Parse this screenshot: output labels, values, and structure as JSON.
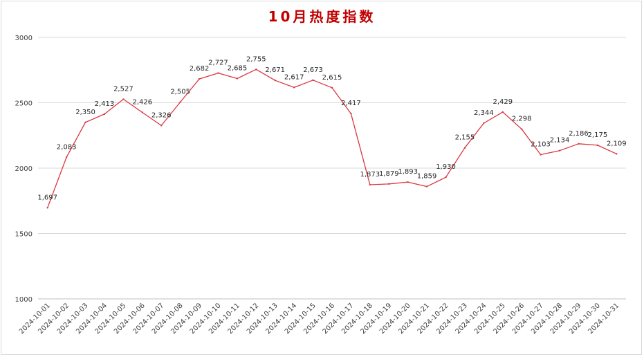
{
  "chart_data": {
    "type": "line",
    "title": "10月热度指数",
    "xlabel": "",
    "ylabel": "",
    "ylim": [
      1000,
      3000
    ],
    "yticks": [
      1000,
      1500,
      2000,
      2500,
      3000
    ],
    "grid": "horizontal",
    "legend": "none",
    "line_color": "#d9363e",
    "title_color": "#c00000",
    "categories": [
      "2024-10-01",
      "2024-10-02",
      "2024-10-03",
      "2024-10-04",
      "2024-10-05",
      "2024-10-06",
      "2024-10-07",
      "2024-10-08",
      "2024-10-09",
      "2024-10-10",
      "2024-10-11",
      "2024-10-12",
      "2024-10-13",
      "2024-10-14",
      "2024-10-15",
      "2024-10-16",
      "2024-10-17",
      "2024-10-18",
      "2024-10-19",
      "2024-10-20",
      "2024-10-21",
      "2024-10-22",
      "2024-10-23",
      "2024-10-24",
      "2024-10-25",
      "2024-10-26",
      "2024-10-27",
      "2024-10-28",
      "2024-10-29",
      "2024-10-30",
      "2024-10-31"
    ],
    "values": [
      1697,
      2083,
      2350,
      2413,
      2527,
      2426,
      2326,
      2505,
      2682,
      2727,
      2685,
      2755,
      2671,
      2617,
      2673,
      2615,
      2417,
      1873,
      1879,
      1893,
      1859,
      1930,
      2155,
      2344,
      2429,
      2298,
      2103,
      2134,
      2186,
      2175,
      2109
    ],
    "data_labels": [
      "1,697",
      "2,083",
      "2,350",
      "2,413",
      "2,527",
      "2,426",
      "2,326",
      "2,505",
      "2,682",
      "2,727",
      "2,685",
      "2,755",
      "2,671",
      "2,617",
      "2,673",
      "2,615",
      "2,417",
      "1,873",
      "1,879",
      "1,893",
      "1,859",
      "1,930",
      "2,155",
      "2,344",
      "2,429",
      "2,298",
      "2,103",
      "2,134",
      "2,186",
      "2,175",
      "2,109"
    ]
  }
}
